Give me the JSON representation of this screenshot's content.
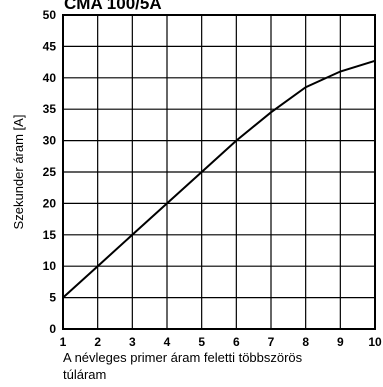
{
  "chart_data": {
    "type": "line",
    "title": "CMA 100/5A",
    "xlabel_lines": [
      "A névleges primer áram feletti többszörös",
      "túláram"
    ],
    "ylabel": "Szekunder áram [A]",
    "xlim": [
      1,
      10
    ],
    "ylim": [
      0,
      50
    ],
    "x_ticks": [
      1,
      2,
      3,
      4,
      5,
      6,
      7,
      8,
      9,
      10
    ],
    "y_ticks": [
      0,
      5,
      10,
      15,
      20,
      25,
      30,
      35,
      40,
      45,
      50
    ],
    "grid": true,
    "series": [
      {
        "x": [
          1,
          2,
          3,
          4,
          5,
          6,
          7,
          8,
          9,
          10
        ],
        "values": [
          5,
          10,
          15,
          20,
          25,
          30,
          34.5,
          38.5,
          41,
          42.7
        ]
      }
    ],
    "line_color": "#000000"
  }
}
